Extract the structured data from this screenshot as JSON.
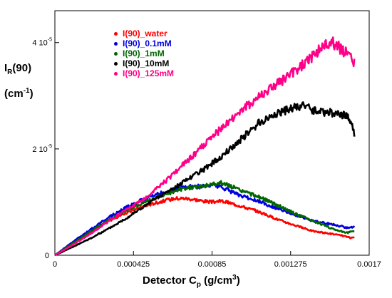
{
  "chart_data": {
    "type": "line",
    "xlabel": {
      "main": "Detector C",
      "sub": "p",
      "rest": " (g/cm",
      "sup": "3",
      "end": ")"
    },
    "ylabel": {
      "main": "I",
      "sub": "R",
      "rest": "(90)",
      "unit_main": "(cm",
      "unit_sup": "-1",
      "unit_end": ")"
    },
    "xlim": [
      0,
      0.0017
    ],
    "ylim": [
      0,
      4.6e-05
    ],
    "x_ticks": [
      {
        "value": 0,
        "label": "0"
      },
      {
        "value": 0.000425,
        "label": "0.000425"
      },
      {
        "value": 0.00085,
        "label": "0.00085"
      },
      {
        "value": 0.001275,
        "label": "0.001275"
      },
      {
        "value": 0.0017,
        "label": "0.0017"
      }
    ],
    "y_ticks": [
      {
        "value": 0,
        "base": "0",
        "exp": ""
      },
      {
        "value": 2e-05,
        "base": "2 10",
        "exp": "-5"
      },
      {
        "value": 4e-05,
        "base": "4 10",
        "exp": "-5"
      }
    ],
    "legend_placement": "top-left",
    "grid": false,
    "series": [
      {
        "name": "I(90)_water",
        "color": "#ff0000",
        "x": [
          0,
          0.0001,
          0.0002,
          0.0003,
          0.0004,
          0.0005,
          0.00055,
          0.0006,
          0.00065,
          0.0007,
          0.00075,
          0.0008,
          0.00085,
          0.0009,
          0.00095,
          0.001,
          0.0011,
          0.0012,
          0.0013,
          0.0014,
          0.0015,
          0.00158,
          0.0016,
          0.00162
        ],
        "y": [
          0,
          2.2e-06,
          4.5e-06,
          6.6e-06,
          8.2e-06,
          9.4e-06,
          9.9e-06,
          1.03e-05,
          1.07e-05,
          1.07e-05,
          1.05e-05,
          1.02e-05,
          1e-05,
          1.02e-05,
          9.8e-06,
          9.3e-06,
          8.2e-06,
          6.8e-06,
          5.6e-06,
          4.5e-06,
          4e-06,
          3.5e-06,
          3.2e-06,
          3.4e-06
        ]
      },
      {
        "name": "I(90)_0.1mM",
        "color": "#0000dd",
        "x": [
          0,
          0.0001,
          0.0002,
          0.0003,
          0.0004,
          0.0005,
          0.0006,
          0.0007,
          0.0008,
          0.00085,
          0.0009,
          0.00095,
          0.001,
          0.0011,
          0.0012,
          0.0013,
          0.0014,
          0.0015,
          0.00158,
          0.00162
        ],
        "y": [
          0,
          2.6e-06,
          5e-06,
          7.3e-06,
          9.3e-06,
          1.08e-05,
          1.2e-05,
          1.28e-05,
          1.3e-05,
          1.32e-05,
          1.28e-05,
          1.2e-05,
          1.12e-05,
          1.02e-05,
          8.8e-06,
          7.6e-06,
          6.4e-06,
          5.8e-06,
          5.2e-06,
          5.3e-06
        ]
      },
      {
        "name": "I(90)_1mM",
        "color": "#006600",
        "x": [
          0,
          0.0001,
          0.0002,
          0.0003,
          0.0004,
          0.0005,
          0.0006,
          0.0007,
          0.0008,
          0.00085,
          0.0009,
          0.00095,
          0.001,
          0.0011,
          0.0012,
          0.0013,
          0.0014,
          0.0015,
          0.00158,
          0.00162
        ],
        "y": [
          0,
          2.3e-06,
          4.6e-06,
          6.8e-06,
          8.6e-06,
          1.02e-05,
          1.15e-05,
          1.25e-05,
          1.3e-05,
          1.33e-05,
          1.36e-05,
          1.3e-05,
          1.22e-05,
          1.1e-05,
          9.5e-06,
          7.8e-06,
          6.4e-06,
          5e-06,
          4.2e-06,
          4.6e-06
        ]
      },
      {
        "name": "I(90)_10mM",
        "color": "#000000",
        "x": [
          0,
          0.0001,
          0.0002,
          0.0003,
          0.0004,
          0.0005,
          0.0006,
          0.0007,
          0.0008,
          0.0009,
          0.001,
          0.0011,
          0.0012,
          0.0013,
          0.00135,
          0.0014,
          0.0015,
          0.00158,
          0.0016,
          0.00162
        ],
        "y": [
          0,
          1.6e-06,
          3.3e-06,
          5.2e-06,
          7.3e-06,
          9.6e-06,
          1.18e-05,
          1.38e-05,
          1.6e-05,
          1.86e-05,
          2.16e-05,
          2.48e-05,
          2.68e-05,
          2.78e-05,
          2.8e-05,
          2.73e-05,
          2.68e-05,
          2.62e-05,
          2.48e-05,
          2.3e-05
        ]
      },
      {
        "name": "I(90)_125mM",
        "color": "#ff0088",
        "x": [
          0,
          0.0001,
          0.0002,
          0.0003,
          0.0004,
          0.0005,
          0.0006,
          0.0007,
          0.0008,
          0.0009,
          0.001,
          0.0011,
          0.0012,
          0.0013,
          0.00135,
          0.0014,
          0.00145,
          0.0015,
          0.00155,
          0.0016,
          0.00162
        ],
        "y": [
          0,
          2e-06,
          4.2e-06,
          6.6e-06,
          8.8e-06,
          1.1e-05,
          1.4e-05,
          1.72e-05,
          2.05e-05,
          2.38e-05,
          2.7e-05,
          2.97e-05,
          3.22e-05,
          3.45e-05,
          3.6e-05,
          3.78e-05,
          3.92e-05,
          4e-05,
          3.88e-05,
          3.7e-05,
          3.62e-05
        ]
      }
    ]
  }
}
